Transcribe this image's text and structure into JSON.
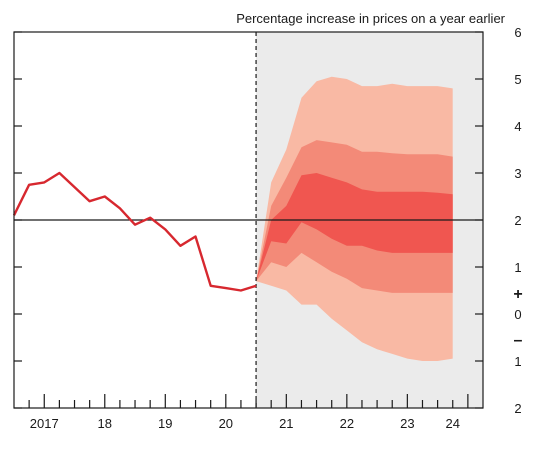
{
  "chart_data": {
    "type": "area",
    "title": "Percentage increase in prices on a year earlier",
    "ylim": [
      -2,
      6
    ],
    "x_range": [
      2016.5,
      2024.25
    ],
    "forecast_start": 2020.5,
    "target": 2,
    "grid": false,
    "x_ticks": [
      {
        "value": 2017.0,
        "label": "2017"
      },
      {
        "value": 2018.0,
        "label": "18"
      },
      {
        "value": 2019.0,
        "label": "19"
      },
      {
        "value": 2020.0,
        "label": "20"
      },
      {
        "value": 2021.0,
        "label": "21"
      },
      {
        "value": 2022.0,
        "label": "22"
      },
      {
        "value": 2023.0,
        "label": "23"
      },
      {
        "value": 2023.75,
        "label": "24"
      }
    ],
    "y_ticks": [
      {
        "value": 6,
        "label": "6"
      },
      {
        "value": 5,
        "label": "5"
      },
      {
        "value": 4,
        "label": "4"
      },
      {
        "value": 3,
        "label": "3"
      },
      {
        "value": 2,
        "label": "2"
      },
      {
        "value": 1,
        "label": "1"
      },
      {
        "value": 0,
        "label": "0"
      },
      {
        "value": -1,
        "label": "1"
      },
      {
        "value": -2,
        "label": "2"
      }
    ],
    "sign_markers": {
      "plus": "+",
      "minus": "–"
    },
    "outturn": {
      "x": [
        2016.5,
        2016.75,
        2017.0,
        2017.25,
        2017.5,
        2017.75,
        2018.0,
        2018.25,
        2018.5,
        2018.75,
        2019.0,
        2019.25,
        2019.5,
        2019.75,
        2020.0,
        2020.25,
        2020.5
      ],
      "y": [
        2.1,
        2.75,
        2.8,
        3.0,
        2.7,
        2.4,
        2.5,
        2.25,
        1.9,
        2.05,
        1.8,
        1.45,
        1.65,
        0.6,
        0.55,
        0.5,
        0.6
      ]
    },
    "fan": {
      "x": [
        2020.5,
        2020.75,
        2021.0,
        2021.25,
        2021.5,
        2021.75,
        2022.0,
        2022.25,
        2022.5,
        2022.75,
        2023.0,
        2023.25,
        2023.5,
        2023.75
      ],
      "outer_upper": [
        0.7,
        2.8,
        3.5,
        4.6,
        4.95,
        5.05,
        5.0,
        4.85,
        4.85,
        4.9,
        4.85,
        4.85,
        4.85,
        4.8
      ],
      "middle_upper": [
        0.7,
        2.3,
        2.9,
        3.55,
        3.7,
        3.65,
        3.6,
        3.45,
        3.45,
        3.42,
        3.4,
        3.4,
        3.4,
        3.35
      ],
      "inner_upper": [
        0.7,
        2.0,
        2.3,
        2.95,
        3.0,
        2.9,
        2.8,
        2.65,
        2.6,
        2.6,
        2.6,
        2.6,
        2.58,
        2.55
      ],
      "inner_lower": [
        0.7,
        1.55,
        1.5,
        1.95,
        1.8,
        1.6,
        1.45,
        1.45,
        1.35,
        1.3,
        1.3,
        1.3,
        1.3,
        1.3
      ],
      "middle_lower": [
        0.7,
        1.1,
        1.0,
        1.3,
        1.1,
        0.9,
        0.75,
        0.55,
        0.5,
        0.45,
        0.45,
        0.45,
        0.45,
        0.45
      ],
      "outer_lower": [
        0.7,
        0.6,
        0.5,
        0.2,
        0.2,
        -0.1,
        -0.35,
        -0.6,
        -0.75,
        -0.85,
        -0.95,
        -1.0,
        -1.0,
        -0.95
      ]
    },
    "colors": {
      "outturn_line": "#d7282f",
      "fan_outer": "#f9b9a4",
      "fan_middle": "#f38a78",
      "fan_inner": "#f05650",
      "forecast_shade": "#ebebeb",
      "axis": "#1a1a1a"
    }
  }
}
